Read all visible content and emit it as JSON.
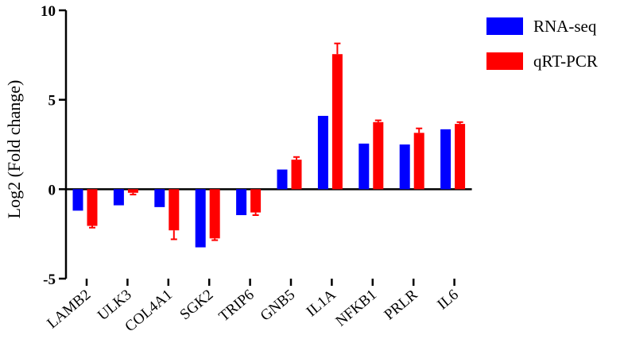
{
  "chart_data": {
    "type": "bar",
    "ylabel": "Log2 (Fold change)",
    "xlabel": "",
    "ylim": [
      -5,
      10
    ],
    "yticks": [
      10,
      5,
      0,
      -5
    ],
    "categories": [
      "LAMB2",
      "ULK3",
      "COL4A1",
      "SGK2",
      "TRIP6",
      "GNB5",
      "IL1A",
      "NFKB1",
      "PRLR",
      "IL6"
    ],
    "series": [
      {
        "name": "RNA-seq",
        "color": "#0000ff",
        "values": [
          -1.2,
          -0.9,
          -1.0,
          -3.25,
          -1.45,
          1.1,
          4.1,
          2.55,
          2.5,
          3.35
        ],
        "errors": [
          0,
          0,
          0,
          0,
          0,
          0,
          0,
          0,
          0,
          0
        ]
      },
      {
        "name": "qRT-PCR",
        "color": "#ff0000",
        "values": [
          -2.05,
          -0.2,
          -2.3,
          -2.75,
          -1.3,
          1.65,
          7.55,
          3.75,
          3.15,
          3.65
        ],
        "errors": [
          0.1,
          0.1,
          0.5,
          0.1,
          0.15,
          0.15,
          0.6,
          0.1,
          0.25,
          0.1
        ]
      }
    ],
    "grid": false,
    "legend_position": "top-right"
  }
}
